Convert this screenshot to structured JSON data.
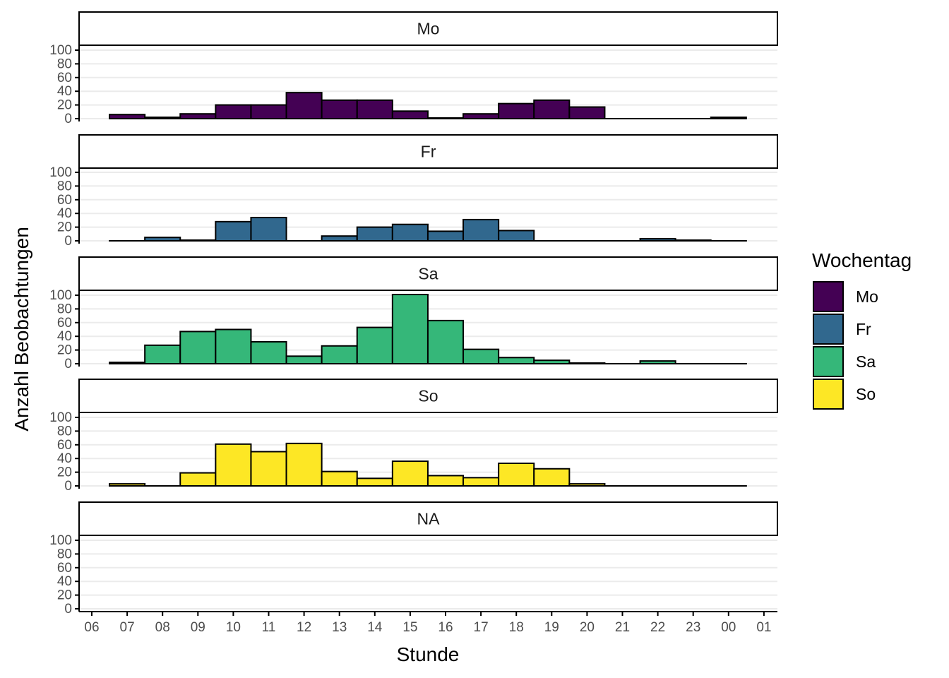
{
  "chart_data": {
    "type": "bar",
    "xlabel": "Stunde",
    "ylabel": "Anzahl Beobachtungen",
    "x_ticks": [
      "06",
      "07",
      "08",
      "09",
      "10",
      "11",
      "12",
      "13",
      "14",
      "15",
      "16",
      "17",
      "18",
      "19",
      "20",
      "21",
      "22",
      "23",
      "00",
      "01"
    ],
    "y_ticks": [
      0,
      20,
      40,
      60,
      80,
      100
    ],
    "ylim": [
      0,
      100
    ],
    "grid": "horizontal",
    "legend": {
      "title": "Wochentag",
      "position": "right",
      "items": [
        {
          "label": "Mo",
          "color": "#440154"
        },
        {
          "label": "Fr",
          "color": "#31688E"
        },
        {
          "label": "Sa",
          "color": "#35B779"
        },
        {
          "label": "So",
          "color": "#FDE725"
        }
      ]
    },
    "panels": [
      {
        "name": "Mo",
        "color": "#440154",
        "bars": [
          [
            "07",
            6
          ],
          [
            "08",
            2
          ],
          [
            "09",
            7
          ],
          [
            "10",
            20
          ],
          [
            "11",
            20
          ],
          [
            "12",
            38
          ],
          [
            "13",
            27
          ],
          [
            "14",
            27
          ],
          [
            "15",
            11
          ],
          [
            "16",
            1
          ],
          [
            "17",
            7
          ],
          [
            "18",
            22
          ],
          [
            "19",
            27
          ],
          [
            "20",
            17
          ],
          [
            "21",
            0
          ],
          [
            "22",
            0
          ],
          [
            "23",
            0
          ],
          [
            "00",
            2
          ]
        ]
      },
      {
        "name": "Fr",
        "color": "#31688E",
        "bars": [
          [
            "07",
            0
          ],
          [
            "08",
            5
          ],
          [
            "09",
            1
          ],
          [
            "10",
            28
          ],
          [
            "11",
            34
          ],
          [
            "12",
            0
          ],
          [
            "13",
            7
          ],
          [
            "14",
            20
          ],
          [
            "15",
            24
          ],
          [
            "16",
            14
          ],
          [
            "17",
            31
          ],
          [
            "18",
            15
          ],
          [
            "19",
            0
          ],
          [
            "20",
            0
          ],
          [
            "21",
            0
          ],
          [
            "22",
            3
          ],
          [
            "23",
            1
          ],
          [
            "00",
            0
          ]
        ]
      },
      {
        "name": "Sa",
        "color": "#35B779",
        "bars": [
          [
            "07",
            2
          ],
          [
            "08",
            27
          ],
          [
            "09",
            47
          ],
          [
            "10",
            50
          ],
          [
            "11",
            32
          ],
          [
            "12",
            11
          ],
          [
            "13",
            26
          ],
          [
            "14",
            53
          ],
          [
            "15",
            101
          ],
          [
            "16",
            63
          ],
          [
            "17",
            21
          ],
          [
            "18",
            9
          ],
          [
            "19",
            5
          ],
          [
            "20",
            1
          ],
          [
            "21",
            0
          ],
          [
            "22",
            4
          ],
          [
            "23",
            0
          ],
          [
            "00",
            0
          ]
        ]
      },
      {
        "name": "So",
        "color": "#FDE725",
        "bars": [
          [
            "07",
            3
          ],
          [
            "08",
            0
          ],
          [
            "09",
            19
          ],
          [
            "10",
            61
          ],
          [
            "11",
            50
          ],
          [
            "12",
            62
          ],
          [
            "13",
            21
          ],
          [
            "14",
            11
          ],
          [
            "15",
            36
          ],
          [
            "16",
            15
          ],
          [
            "17",
            12
          ],
          [
            "18",
            33
          ],
          [
            "19",
            25
          ],
          [
            "20",
            3
          ],
          [
            "21",
            0
          ],
          [
            "22",
            0
          ],
          [
            "23",
            0
          ],
          [
            "00",
            0
          ]
        ]
      },
      {
        "name": "NA",
        "color": "#808080",
        "bars": []
      }
    ]
  }
}
